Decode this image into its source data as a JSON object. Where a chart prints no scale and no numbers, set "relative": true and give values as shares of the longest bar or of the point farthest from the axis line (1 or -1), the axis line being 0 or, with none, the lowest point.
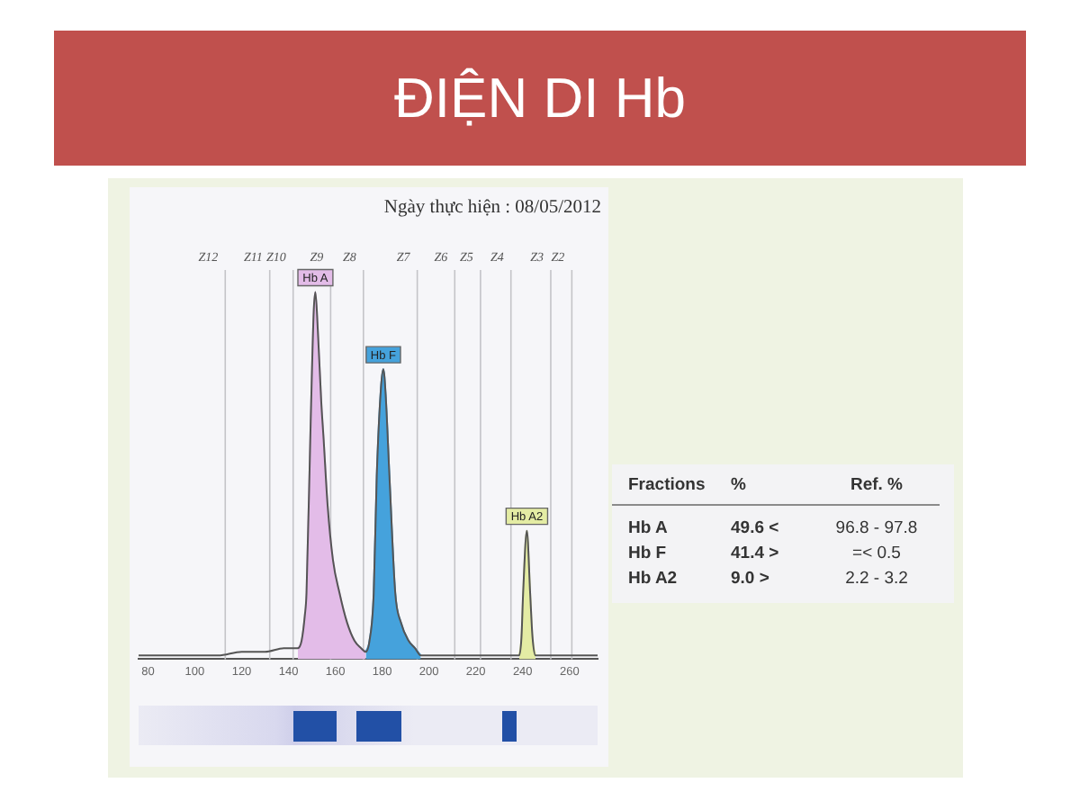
{
  "chart_data": {
    "type": "area",
    "title": "ĐIỆN DI Hb",
    "subtitle": "Ngày thực hiện : 08/05/2012",
    "relative": true,
    "xlim": [
      76,
      272
    ],
    "xticks": [
      80,
      100,
      120,
      140,
      160,
      180,
      200,
      220,
      240,
      260
    ],
    "grid": false,
    "legend": false,
    "marker": "none",
    "line_style": "solid",
    "ref_lines": [
      {
        "axis": "x",
        "value": 113,
        "label": "Z12"
      },
      {
        "axis": "x",
        "value": 132,
        "label": "Z11"
      },
      {
        "axis": "x",
        "value": 142,
        "label": "Z10"
      },
      {
        "axis": "x",
        "value": 158,
        "label": "Z9"
      },
      {
        "axis": "x",
        "value": 172,
        "label": "Z8"
      },
      {
        "axis": "x",
        "value": 195,
        "label": "Z7"
      },
      {
        "axis": "x",
        "value": 211,
        "label": "Z6"
      },
      {
        "axis": "x",
        "value": 222,
        "label": "Z5"
      },
      {
        "axis": "x",
        "value": 235,
        "label": "Z4"
      },
      {
        "axis": "x",
        "value": 252,
        "label": "Z3"
      },
      {
        "axis": "x",
        "value": 261,
        "label": "Z2"
      }
    ],
    "series": [
      {
        "type": "line",
        "color": "#555555",
        "x": [
          76,
          90,
          100,
          110,
          120,
          130,
          138,
          144,
          145.6,
          147,
          147.7,
          149.5,
          150.8,
          151.5,
          152.5,
          154,
          155,
          156.7,
          159,
          161.8,
          165,
          168.2,
          171,
          173,
          174.6,
          176.4,
          177.7,
          179.5,
          180.5,
          181.5,
          183.1,
          185.6,
          188,
          191.3,
          194,
          196.5,
          200,
          220,
          238.5,
          239.5,
          240.2,
          241.8,
          243.2,
          244.2,
          245.5,
          260,
          272
        ],
        "values": [
          0.01,
          0.01,
          0.01,
          0.01,
          0.02,
          0.02,
          0.03,
          0.03,
          0.05,
          0.12,
          0.18,
          0.65,
          0.95,
          1,
          0.9,
          0.7,
          0.6,
          0.42,
          0.27,
          0.18,
          0.1,
          0.05,
          0.03,
          0.02,
          0.05,
          0.18,
          0.5,
          0.74,
          0.79,
          0.72,
          0.5,
          0.18,
          0.1,
          0.05,
          0.03,
          0.01,
          0.01,
          0.01,
          0.01,
          0.06,
          0.18,
          0.35,
          0.18,
          0.06,
          0.01,
          0.01,
          0.01
        ]
      },
      {
        "name": "Hb A",
        "color": "#e3bce8",
        "x": [
          144,
          145.6,
          147,
          147.7,
          149.5,
          150.8,
          151.5,
          152.5,
          154,
          155,
          156.7,
          159,
          161.8,
          165,
          168.2,
          171,
          173
        ],
        "values": [
          0.03,
          0.05,
          0.12,
          0.18,
          0.65,
          0.95,
          1,
          0.9,
          0.7,
          0.6,
          0.42,
          0.27,
          0.18,
          0.1,
          0.05,
          0.03,
          0.02
        ]
      },
      {
        "name": "Hb F",
        "color": "#45a2dc",
        "x": [
          173,
          174.6,
          176.4,
          177.7,
          179.5,
          180.5,
          181.5,
          183.1,
          185.6,
          188,
          191.3,
          194,
          196.5
        ],
        "values": [
          0.02,
          0.05,
          0.18,
          0.5,
          0.74,
          0.79,
          0.72,
          0.5,
          0.18,
          0.1,
          0.05,
          0.03,
          0.01
        ]
      },
      {
        "name": "Hb A2",
        "color": "#e4eca4",
        "x": [
          238.5,
          239.5,
          240.2,
          241.8,
          243.2,
          244.2,
          245.5
        ],
        "values": [
          0.01,
          0.06,
          0.18,
          0.35,
          0.18,
          0.06,
          0.01
        ]
      }
    ],
    "annotations": [
      "Fractions",
      "%",
      "Ref. %",
      "Hb A",
      "49.6 <",
      "96.8 - 97.8",
      "Hb F",
      "41.4 >",
      "=< 0.5",
      "Hb A2",
      "9.0 >",
      "2.2 - 3.2"
    ]
  }
}
